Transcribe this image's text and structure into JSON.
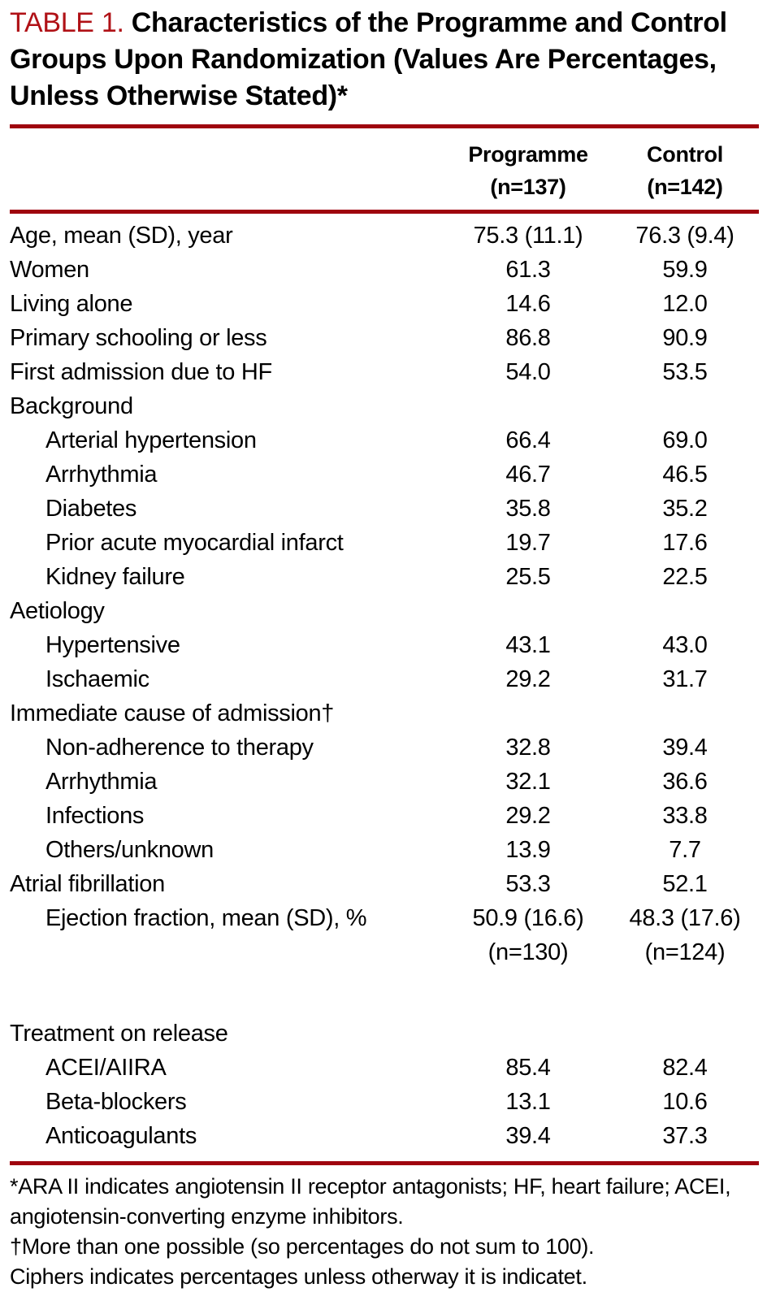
{
  "title": {
    "label": "TABLE 1.",
    "text": "Characteristics of the Programme and Control Groups Upon Randomization (Values Are Percentages, Unless Otherwise Stated)*"
  },
  "columns": {
    "programme": {
      "name": "Programme",
      "n": "(n=137)"
    },
    "control": {
      "name": "Control",
      "n": "(n=142)"
    }
  },
  "rows": [
    {
      "label": "Age, mean (SD), year",
      "indent": 0,
      "programme": "75.3 (11.1)",
      "control": "76.3 (9.4)"
    },
    {
      "label": "Women",
      "indent": 0,
      "programme": "61.3",
      "control": "59.9"
    },
    {
      "label": "Living alone",
      "indent": 0,
      "programme": "14.6",
      "control": "12.0"
    },
    {
      "label": "Primary schooling or less",
      "indent": 0,
      "programme": "86.8",
      "control": "90.9"
    },
    {
      "label": "First admission due to HF",
      "indent": 0,
      "programme": "54.0",
      "control": "53.5"
    },
    {
      "label": "Background",
      "indent": 0,
      "programme": "",
      "control": ""
    },
    {
      "label": "Arterial hypertension",
      "indent": 1,
      "programme": "66.4",
      "control": "69.0"
    },
    {
      "label": "Arrhythmia",
      "indent": 1,
      "programme": "46.7",
      "control": "46.5"
    },
    {
      "label": "Diabetes",
      "indent": 1,
      "programme": "35.8",
      "control": "35.2"
    },
    {
      "label": "Prior acute myocardial infarct",
      "indent": 1,
      "programme": "19.7",
      "control": "17.6"
    },
    {
      "label": "Kidney failure",
      "indent": 1,
      "programme": "25.5",
      "control": "22.5"
    },
    {
      "label": "Aetiology",
      "indent": 0,
      "programme": "",
      "control": ""
    },
    {
      "label": "Hypertensive",
      "indent": 1,
      "programme": "43.1",
      "control": "43.0"
    },
    {
      "label": "Ischaemic",
      "indent": 1,
      "programme": "29.2",
      "control": "31.7"
    },
    {
      "label": "Immediate cause of admission†",
      "indent": 0,
      "programme": "",
      "control": ""
    },
    {
      "label": "Non-adherence to therapy",
      "indent": 1,
      "programme": "32.8",
      "control": "39.4"
    },
    {
      "label": "Arrhythmia",
      "indent": 1,
      "programme": "32.1",
      "control": "36.6"
    },
    {
      "label": "Infections",
      "indent": 1,
      "programme": "29.2",
      "control": "33.8"
    },
    {
      "label": "Others/unknown",
      "indent": 1,
      "programme": "13.9",
      "control": "7.7"
    },
    {
      "label": "Atrial fibrillation",
      "indent": 0,
      "programme": "53.3",
      "control": "52.1"
    },
    {
      "label": "Ejection fraction, mean (SD), %",
      "indent": 1,
      "programme": "50.9 (16.6)",
      "control": "48.3 (17.6)",
      "programme_line2": "(n=130)",
      "control_line2": "(n=124)"
    },
    {
      "spacer": true
    },
    {
      "label": "Treatment on release",
      "indent": 0,
      "programme": "",
      "control": ""
    },
    {
      "label": "ACEI/AIIRA",
      "indent": 1,
      "programme": "85.4",
      "control": "82.4"
    },
    {
      "label": "Beta-blockers",
      "indent": 1,
      "programme": "13.1",
      "control": "10.6"
    },
    {
      "label": "Anticoagulants",
      "indent": 1,
      "programme": "39.4",
      "control": "37.3"
    }
  ],
  "footnotes": [
    "*ARA II indicates angiotensin II receptor antagonists; HF, heart failure; ACEI,",
    "angiotensin-converting enzyme inhibitors.",
    "†More than one possible (so percentages do not sum to 100).",
    "Ciphers indicates percentages unless otherway it is indicatet."
  ],
  "colors": {
    "accent_red": "#b01116",
    "rule_red": "#9f040e"
  }
}
